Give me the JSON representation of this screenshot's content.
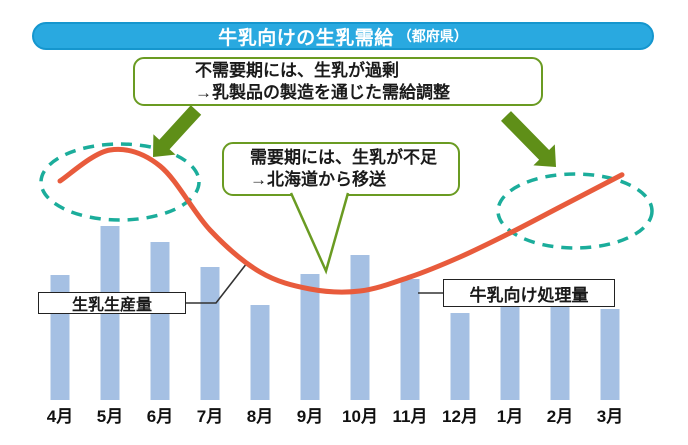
{
  "title": {
    "main": "牛乳向けの生乳需給",
    "region": "（都府県）"
  },
  "callouts": {
    "offseason": {
      "line1": "不需要期には、生乳が過剰",
      "line2": "→乳製品の製造を通じた需給調整"
    },
    "demand": {
      "line1": "需要期には、生乳が不足",
      "line2": "→北海道から移送"
    }
  },
  "labels": {
    "production": "生乳生産量",
    "processing": "牛乳向け処理量"
  },
  "colors": {
    "title_bar": "#29A9E0",
    "title_bar_border": "#1596CE",
    "bar": "#A5C0E3",
    "line": "#E85B3C",
    "green_border": "#6A9B22",
    "arrow_green": "#5F8F18",
    "ellipse_teal": "#1BAD9B",
    "label_border": "#222222",
    "connector": "#333333"
  },
  "chart_data": {
    "type": "combo",
    "title": "牛乳向けの生乳需給（都府県）",
    "categories": [
      "4月",
      "5月",
      "6月",
      "7月",
      "8月",
      "9月",
      "10月",
      "11月",
      "12月",
      "1月",
      "2月",
      "3月"
    ],
    "series": [
      {
        "name": "生乳生産量",
        "type": "line",
        "color": "#E85B3C",
        "values": [
          219,
          250,
          234,
          170,
          128,
          111,
          109,
          123,
          143,
          167,
          193,
          219
        ]
      },
      {
        "name": "牛乳向け処理量",
        "type": "bar",
        "color": "#A5C0E3",
        "values": [
          125,
          174,
          158,
          133,
          95,
          126,
          145,
          121,
          87,
          93,
          93,
          91
        ]
      }
    ],
    "xlabel": "月",
    "ylabel": "",
    "value_units": "relative units (no y-axis shown in figure)",
    "grid": false,
    "legend_position": "inline-labels",
    "annotations": [
      "不需要期には、生乳が過剰 →乳製品の製造を通じた需給調整（4〜6月・1〜3月の余剰域を点線楕円で強調）",
      "需要期には、生乳が不足 →北海道から移送（9〜10月の不足域を吹き出しで指示）"
    ]
  }
}
